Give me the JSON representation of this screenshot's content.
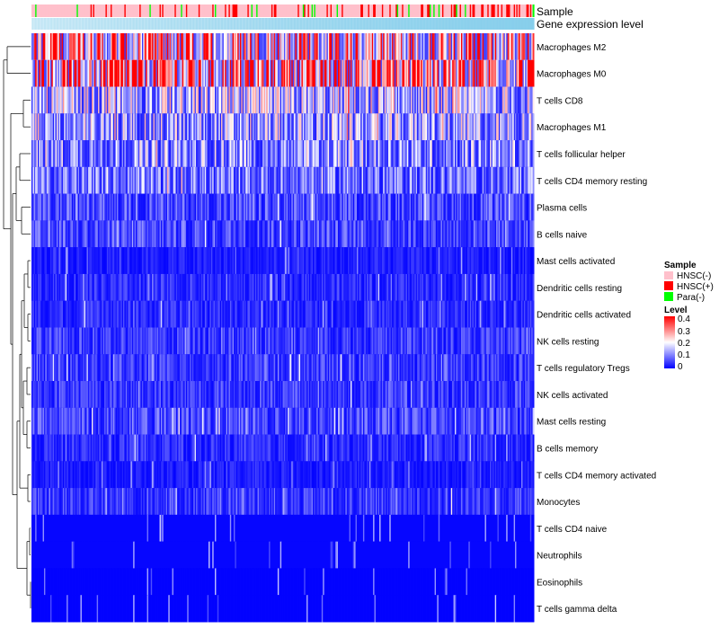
{
  "chart_data": {
    "type": "heatmap",
    "annotation_tracks": [
      "Sample",
      "Gene expression level"
    ],
    "rows": [
      "Macrophages M2",
      "Macrophages M0",
      "T cells CD8",
      "Macrophages M1",
      "T cells follicular helper",
      "T cells CD4 memory resting",
      "Plasma cells",
      "B cells naive",
      "Mast cells activated",
      "Dendritic cells resting",
      "Dendritic cells activated",
      "NK cells resting",
      "T cells regulatory  Tregs",
      "NK cells activated",
      "Mast cells resting",
      "B cells memory",
      "T cells CD4 memory activated",
      "Monocytes",
      "T cells CD4 naive",
      "Neutrophils",
      "Eosinophils",
      "T cells gamma delta"
    ],
    "row_mean_levels": [
      0.22,
      0.26,
      0.12,
      0.11,
      0.1,
      0.08,
      0.05,
      0.05,
      0.02,
      0.03,
      0.03,
      0.04,
      0.04,
      0.04,
      0.05,
      0.03,
      0.02,
      0.04,
      0.01,
      0.01,
      0.005,
      0.005
    ],
    "sample_legend": {
      "title": "Sample",
      "entries": [
        {
          "label": "HNSC(-)",
          "color": "#ffc0cb"
        },
        {
          "label": "HNSC(+)",
          "color": "#ff0000"
        },
        {
          "label": "Para(-)",
          "color": "#00ff00"
        }
      ]
    },
    "level_legend": {
      "title": "Level",
      "ticks": [
        "0.4",
        "0.3",
        "0.2",
        "0.1",
        "0"
      ],
      "range": [
        0,
        0.4
      ]
    },
    "colors": {
      "low": "#0000ff",
      "mid": "#ffffff",
      "high": "#ff0000",
      "expression_bar": "#87ceeb"
    },
    "column_count": 400
  }
}
